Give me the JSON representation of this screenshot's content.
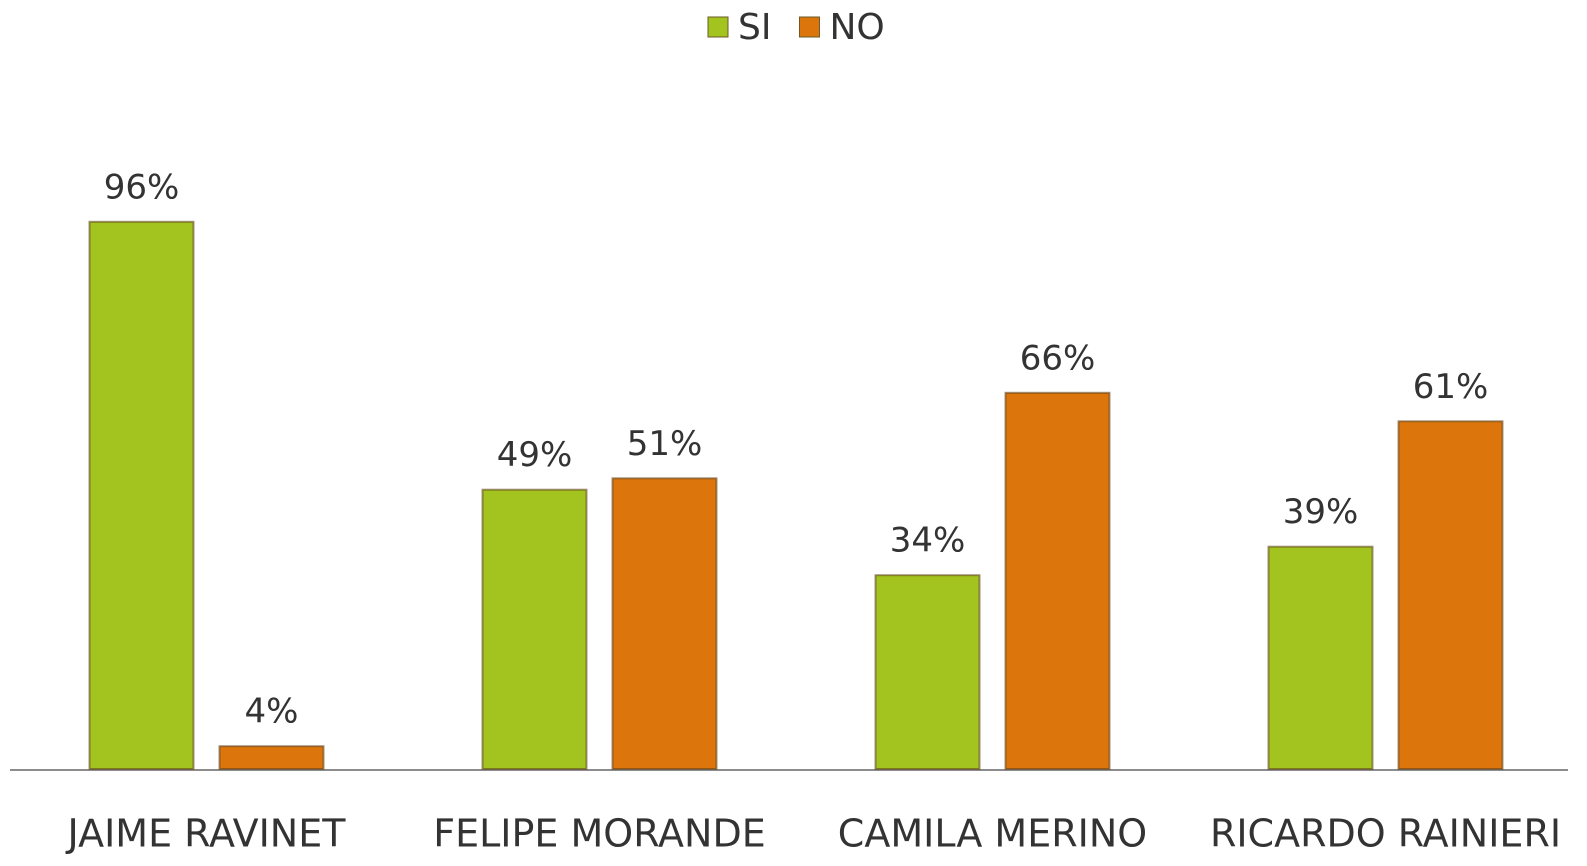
{
  "chart_data": {
    "type": "bar",
    "categories": [
      "JAIME RAVINET",
      "FELIPE MORANDE",
      "CAMILA MERINO",
      "RICARDO RAINIERI"
    ],
    "series": [
      {
        "name": "SI",
        "color": "#a3c41f",
        "values": [
          96,
          49,
          34,
          39
        ],
        "value_labels": [
          "96%",
          "49%",
          "34%",
          "39%"
        ]
      },
      {
        "name": "NO",
        "color": "#dc760c",
        "values": [
          4,
          51,
          66,
          61
        ],
        "value_labels": [
          "4%",
          "51%",
          "66%",
          "61%"
        ]
      }
    ],
    "ylim": [
      0,
      100
    ],
    "legend": "top"
  }
}
